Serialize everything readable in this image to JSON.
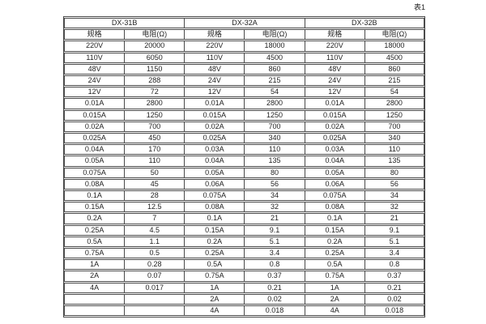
{
  "caption": "表1",
  "table": {
    "groups": [
      {
        "name": "DX-31B",
        "spec_header": "规格",
        "resistance_header": "电阻(Ω)"
      },
      {
        "name": "DX-32A",
        "spec_header": "规格",
        "resistance_header": "电阻(Ω)"
      },
      {
        "name": "DX-32B",
        "spec_header": "规格",
        "resistance_header": "电阻(Ω)"
      }
    ],
    "rows": [
      [
        "220V",
        "20000",
        "220V",
        "18000",
        "220V",
        "18000"
      ],
      [
        "110V",
        "6050",
        "110V",
        "4500",
        "110V",
        "4500"
      ],
      [
        "48V",
        "1150",
        "48V",
        "860",
        "48V",
        "860"
      ],
      [
        "24V",
        "288",
        "24V",
        "215",
        "24V",
        "215"
      ],
      [
        "12V",
        "72",
        "12V",
        "54",
        "12V",
        "54"
      ],
      [
        "0.01A",
        "2800",
        "0.01A",
        "2800",
        "0.01A",
        "2800"
      ],
      [
        "0.015A",
        "1250",
        "0.015A",
        "1250",
        "0.015A",
        "1250"
      ],
      [
        "0.02A",
        "700",
        "0.02A",
        "700",
        "0.02A",
        "700"
      ],
      [
        "0.025A",
        "450",
        "0.025A",
        "340",
        "0.025A",
        "340"
      ],
      [
        "0.04A",
        "170",
        "0.03A",
        "110",
        "0.03A",
        "110"
      ],
      [
        "0.05A",
        "110",
        "0.04A",
        "135",
        "0.04A",
        "135"
      ],
      [
        "0.075A",
        "50",
        "0.05A",
        "80",
        "0.05A",
        "80"
      ],
      [
        "0.08A",
        "45",
        "0.06A",
        "56",
        "0.06A",
        "56"
      ],
      [
        "0.1A",
        "28",
        "0.075A",
        "34",
        "0.075A",
        "34"
      ],
      [
        "0.15A",
        "12.5",
        "0.08A",
        "32",
        "0.08A",
        "32"
      ],
      [
        "0.2A",
        "7",
        "0.1A",
        "21",
        "0.1A",
        "21"
      ],
      [
        "0.25A",
        "4.5",
        "0.15A",
        "9.1",
        "0.15A",
        "9.1"
      ],
      [
        "0.5A",
        "1.1",
        "0.2A",
        "5.1",
        "0.2A",
        "5.1"
      ],
      [
        "0.75A",
        "0.5",
        "0.25A",
        "3.4",
        "0.25A",
        "3.4"
      ],
      [
        "1A",
        "0.28",
        "0.5A",
        "0.8",
        "0.5A",
        "0.8"
      ],
      [
        "2A",
        "0.07",
        "0.75A",
        "0.37",
        "0.75A",
        "0.37"
      ],
      [
        "4A",
        "0.017",
        "1A",
        "0.21",
        "1A",
        "0.21"
      ],
      [
        "",
        "",
        "2A",
        "0.02",
        "2A",
        "0.02"
      ],
      [
        "",
        "",
        "4A",
        "0.018",
        "4A",
        "0.018"
      ]
    ]
  }
}
